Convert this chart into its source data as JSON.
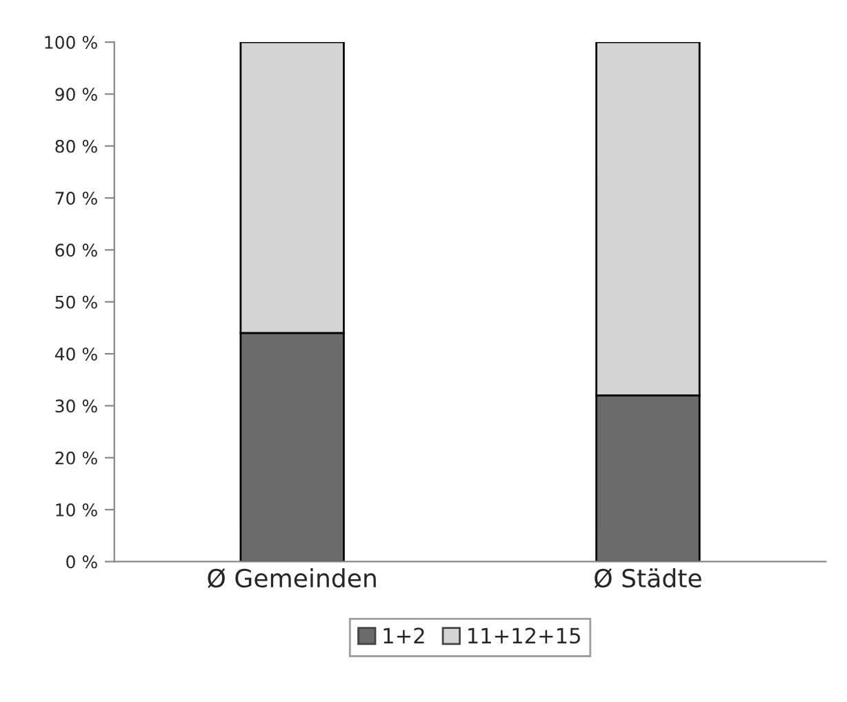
{
  "chart_data": {
    "type": "bar",
    "stacked": true,
    "categories": [
      "Ø Gemeinden",
      "Ø Städte"
    ],
    "series": [
      {
        "name": "1+2",
        "color": "#6b6b6b",
        "values": [
          44,
          32
        ]
      },
      {
        "name": "11+12+15",
        "color": "#d4d4d4",
        "values": [
          56,
          68
        ]
      }
    ],
    "ylim": [
      0,
      100
    ],
    "yticks": [
      {
        "value": 0,
        "label": "0 %"
      },
      {
        "value": 10,
        "label": "10 %"
      },
      {
        "value": 20,
        "label": "20 %"
      },
      {
        "value": 30,
        "label": "30 %"
      },
      {
        "value": 40,
        "label": "40 %"
      },
      {
        "value": 50,
        "label": "50 %"
      },
      {
        "value": 60,
        "label": "60 %"
      },
      {
        "value": 70,
        "label": "70 %"
      },
      {
        "value": 80,
        "label": "80 %"
      },
      {
        "value": 90,
        "label": "90 %"
      },
      {
        "value": 100,
        "label": "100 %"
      }
    ],
    "grid": false,
    "legend": "bottom"
  }
}
